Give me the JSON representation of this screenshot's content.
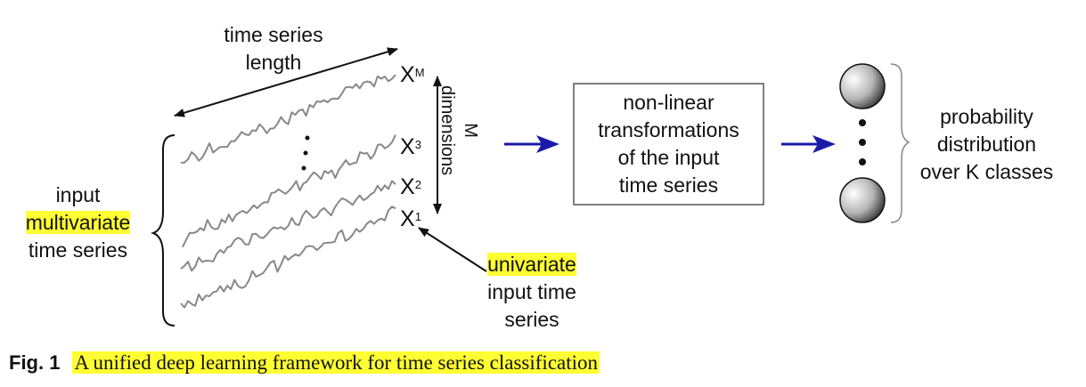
{
  "diagram": {
    "time_length_label": [
      "time series",
      "length"
    ],
    "input_label": {
      "line1": "input",
      "line2": "multivariate",
      "line3": "time series"
    },
    "series_labels": [
      {
        "base": "X",
        "sup": "M"
      },
      {
        "base": "X",
        "sup": "3"
      },
      {
        "base": "X",
        "sup": "2"
      },
      {
        "base": "X",
        "sup": "1"
      }
    ],
    "dimensions_label": [
      "M",
      "dimensions"
    ],
    "univariate_label": {
      "line1": "univariate",
      "line2": "input time",
      "line3": "series"
    },
    "transform_box_lines": [
      "non-linear",
      "transformations",
      "of the input",
      "time series"
    ],
    "output_label": [
      "probability",
      "distribution",
      "over K classes"
    ],
    "colors": {
      "arrow_blue": "#1a1aa8",
      "highlight": "#ffff33",
      "series_gray": "#888888"
    }
  },
  "caption": {
    "label": "Fig. 1",
    "text": "A unified deep learning framework for time series classification"
  }
}
